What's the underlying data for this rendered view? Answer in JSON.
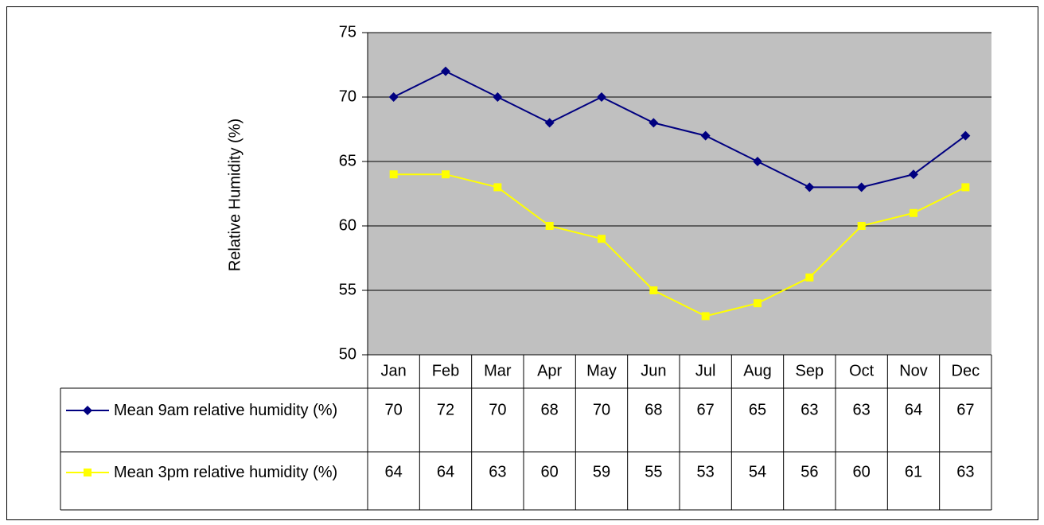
{
  "chart_data": {
    "type": "line",
    "y_label": "Relative Humidity (%)",
    "categories": [
      "Jan",
      "Feb",
      "Mar",
      "Apr",
      "May",
      "Jun",
      "Jul",
      "Aug",
      "Sep",
      "Oct",
      "Nov",
      "Dec"
    ],
    "series": [
      {
        "name": "Mean 9am relative humidity (%)",
        "color": "#000080",
        "marker": "diamond",
        "values": [
          70,
          72,
          70,
          68,
          70,
          68,
          67,
          65,
          63,
          63,
          64,
          67
        ]
      },
      {
        "name": "Mean 3pm relative humidity (%)",
        "color": "#ffff00",
        "marker": "square",
        "values": [
          64,
          64,
          63,
          60,
          59,
          55,
          53,
          54,
          56,
          60,
          61,
          63
        ]
      }
    ],
    "ylim": [
      50,
      75
    ],
    "yticks": [
      50,
      55,
      60,
      65,
      70,
      75
    ],
    "grid": true,
    "plot_background": "#c0c0c0"
  }
}
